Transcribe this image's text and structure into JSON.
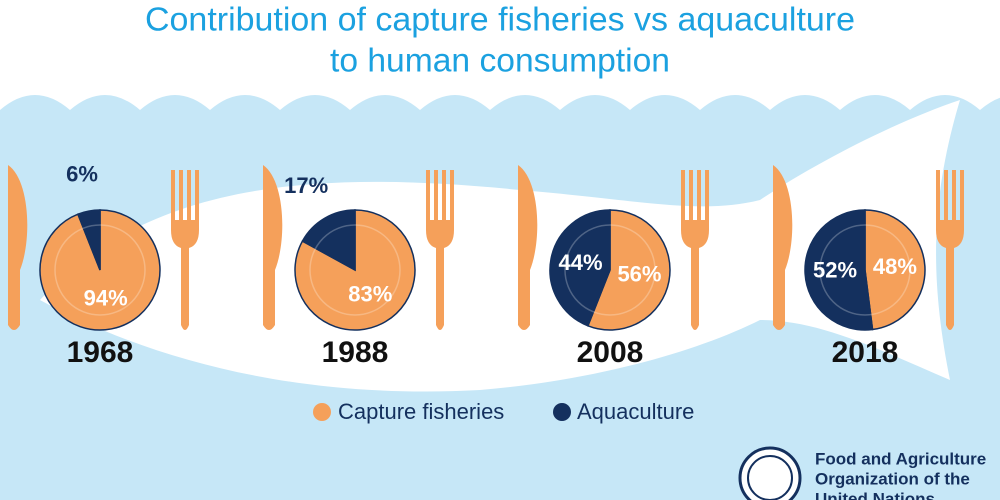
{
  "header": {
    "title_lines": [
      "Contribution of capture fisheries vs aquaculture",
      "to human consumption"
    ]
  },
  "chart_data": [
    {
      "type": "pie",
      "title": "1968",
      "categories": [
        "Capture fisheries",
        "Aquaculture"
      ],
      "values": [
        94,
        6
      ],
      "value_labels": [
        "94%",
        "6%"
      ],
      "colors": [
        "#f5a05a",
        "#14305e"
      ]
    },
    {
      "type": "pie",
      "title": "1988",
      "categories": [
        "Capture fisheries",
        "Aquaculture"
      ],
      "values": [
        83,
        17
      ],
      "value_labels": [
        "83%",
        "17%"
      ],
      "colors": [
        "#f5a05a",
        "#14305e"
      ]
    },
    {
      "type": "pie",
      "title": "2008",
      "categories": [
        "Capture fisheries",
        "Aquaculture"
      ],
      "values": [
        56,
        44
      ],
      "value_labels": [
        "56%",
        "44%"
      ],
      "colors": [
        "#f5a05a",
        "#14305e"
      ]
    },
    {
      "type": "pie",
      "title": "2018",
      "categories": [
        "Capture fisheries",
        "Aquaculture"
      ],
      "values": [
        48,
        52
      ],
      "value_labels": [
        "48%",
        "52%"
      ],
      "colors": [
        "#f5a05a",
        "#14305e"
      ]
    }
  ],
  "footer": {
    "org_lines": [
      "Food and Agriculture",
      "Organization of the",
      "United Nations"
    ]
  }
}
